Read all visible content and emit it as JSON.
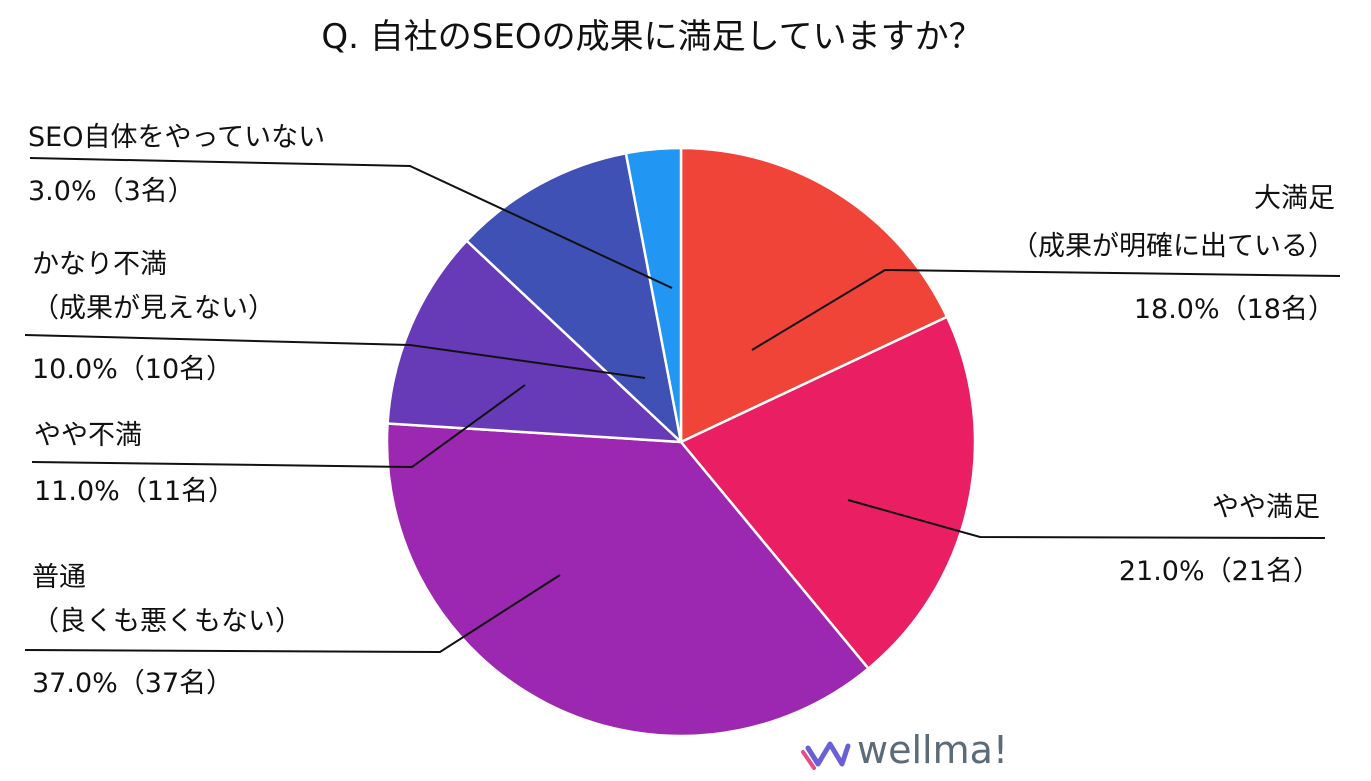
{
  "chart_data": {
    "type": "pie",
    "title": "Q. 自社のSEOの成果に満足していますか？",
    "slices": [
      {
        "label_lines": [
          "大満足",
          "（成果が明確に出ている）"
        ],
        "value_text": "18.0%（18名）",
        "value": 18.0,
        "count": 18,
        "color": "#f04438"
      },
      {
        "label_lines": [
          "やや満足"
        ],
        "value_text": "21.0%（21名）",
        "value": 21.0,
        "count": 21,
        "color": "#e91e63"
      },
      {
        "label_lines": [
          "普通",
          "（良くも悪くもない）"
        ],
        "value_text": "37.0%（37名）",
        "value": 37.0,
        "count": 37,
        "color": "#9c27b0"
      },
      {
        "label_lines": [
          "やや不満"
        ],
        "value_text": "11.0%（11名）",
        "value": 11.0,
        "count": 11,
        "color": "#673ab7"
      },
      {
        "label_lines": [
          "かなり不満",
          "（成果が見えない）"
        ],
        "value_text": "10.0%（10名）",
        "value": 10.0,
        "count": 10,
        "color": "#3f51b5"
      },
      {
        "label_lines": [
          "SEO自体をやっていない"
        ],
        "value_text": "3.0%（3名）",
        "value": 3.0,
        "count": 3,
        "color": "#2196f3"
      }
    ],
    "start_angle_deg": 0,
    "direction": "clockwise"
  },
  "logo": {
    "text": "wellma!"
  }
}
